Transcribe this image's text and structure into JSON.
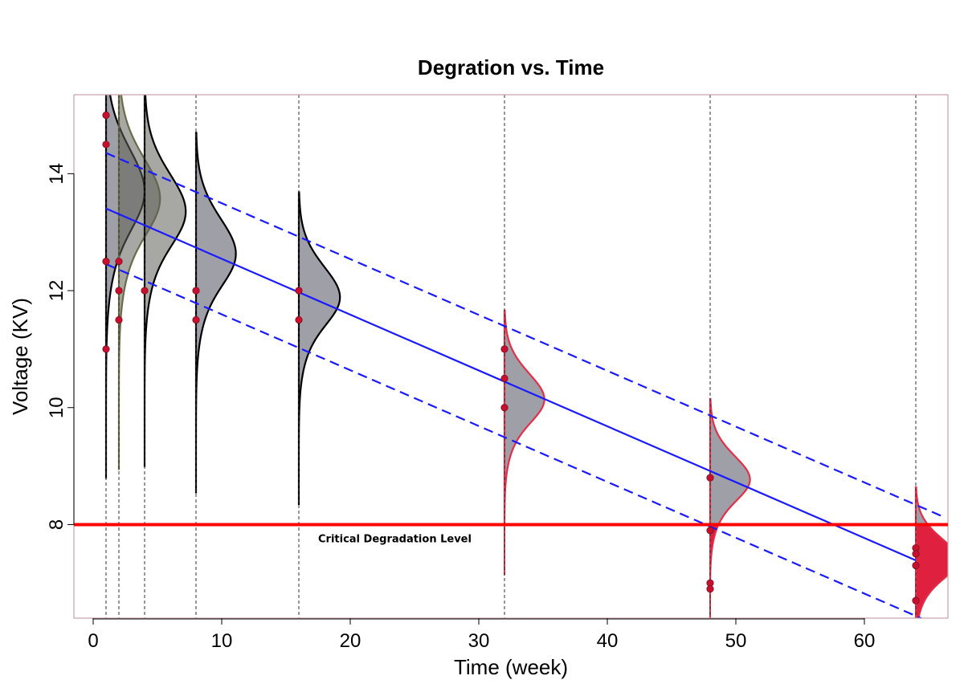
{
  "chart_data": {
    "type": "scatter",
    "title": "Degration vs. Time",
    "xlabel": "Time (week)",
    "ylabel": "Voltage (KV)",
    "xlim": [
      -1.5,
      66.5
    ],
    "ylim": [
      6.4,
      15.35
    ],
    "xticks": [
      0,
      10,
      20,
      30,
      40,
      50,
      60
    ],
    "yticks": [
      8,
      10,
      12,
      14
    ],
    "grid": false,
    "measurement_times": [
      1,
      2,
      4,
      8,
      16,
      32,
      48,
      64
    ],
    "points": [
      {
        "x": 1,
        "y": 15.0
      },
      {
        "x": 1,
        "y": 14.5
      },
      {
        "x": 1,
        "y": 12.5
      },
      {
        "x": 1,
        "y": 11.0
      },
      {
        "x": 2,
        "y": 12.5
      },
      {
        "x": 2,
        "y": 12.0
      },
      {
        "x": 2,
        "y": 11.5
      },
      {
        "x": 4,
        "y": 12.0
      },
      {
        "x": 8,
        "y": 12.0
      },
      {
        "x": 8,
        "y": 11.5
      },
      {
        "x": 16,
        "y": 12.0
      },
      {
        "x": 16,
        "y": 11.5
      },
      {
        "x": 32,
        "y": 11.0
      },
      {
        "x": 32,
        "y": 10.5
      },
      {
        "x": 32,
        "y": 10.0
      },
      {
        "x": 48,
        "y": 8.8
      },
      {
        "x": 48,
        "y": 7.9
      },
      {
        "x": 48,
        "y": 7.0
      },
      {
        "x": 48,
        "y": 6.9
      },
      {
        "x": 64,
        "y": 7.6
      },
      {
        "x": 64,
        "y": 7.5
      },
      {
        "x": 64,
        "y": 7.3
      },
      {
        "x": 64,
        "y": 6.7
      }
    ],
    "fit_line": {
      "slope": -0.0955,
      "intercept": 13.5
    },
    "prediction_band_offset": 0.95,
    "densities": [
      {
        "x": 1,
        "mean": 13.3,
        "sd": 0.9,
        "width": 3.0,
        "state": "above"
      },
      {
        "x": 2,
        "mean": 13.2,
        "sd": 0.85,
        "width": 3.2,
        "state": "above"
      },
      {
        "x": 4,
        "mean": 13.0,
        "sd": 0.8,
        "width": 3.2,
        "state": "above"
      },
      {
        "x": 8,
        "mean": 12.3,
        "sd": 0.75,
        "width": 3.1,
        "state": "above"
      },
      {
        "x": 16,
        "mean": 11.6,
        "sd": 0.65,
        "width": 3.2,
        "state": "above"
      },
      {
        "x": 32,
        "mean": 9.9,
        "sd": 0.55,
        "width": 3.1,
        "state": "crossing"
      },
      {
        "x": 48,
        "mean": 8.55,
        "sd": 0.5,
        "width": 3.1,
        "state": "crossing"
      },
      {
        "x": 64,
        "mean": 7.2,
        "sd": 0.45,
        "width": 3.3,
        "state": "crossing"
      }
    ],
    "threshold": {
      "y": 8,
      "label": "Critical Degradation Level"
    },
    "colors": {
      "points": "#c8102e",
      "fit_line": "#1a1aff",
      "band": "#1a1aff",
      "threshold": "#ff0000",
      "density_fill": "#9a9aa2",
      "density_fill_dark": "#5f5f58",
      "density_edge": "#000000",
      "density_edge_crossing": "#e0304a",
      "failure_fill": "#e0203f",
      "vline": "#333333"
    }
  }
}
